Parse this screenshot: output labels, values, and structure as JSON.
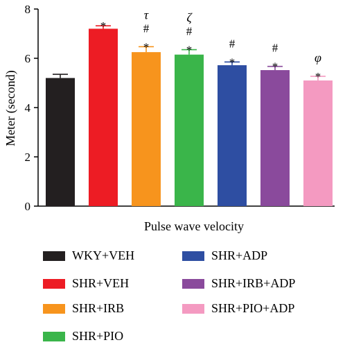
{
  "chart_data": {
    "type": "bar",
    "categories": [
      "WKY+VEH",
      "SHR+VEH",
      "SHR+IRB",
      "SHR+PIO",
      "SHR+ADP",
      "SHR+IRB+ADP",
      "SHR+PIO+ADP"
    ],
    "values": [
      5.2,
      7.2,
      6.25,
      6.15,
      5.72,
      5.52,
      5.1
    ],
    "errors": [
      0.15,
      0.12,
      0.22,
      0.2,
      0.13,
      0.15,
      0.17
    ],
    "colors": [
      "#231f20",
      "#ed1c24",
      "#f7941d",
      "#3ab54a",
      "#2e4ea2",
      "#8a4a9c",
      "#f49ac1"
    ],
    "annotations": [
      [],
      [
        "*"
      ],
      [
        "*",
        "#",
        "τ"
      ],
      [
        "*",
        "#",
        "ζ"
      ],
      [
        "*",
        "#"
      ],
      [
        "*",
        "#"
      ],
      [
        "*",
        "φ"
      ]
    ],
    "title": "",
    "xlabel": "Pulse wave velocity",
    "ylabel": "Meter (second)",
    "ylim": [
      0,
      8
    ],
    "yticks": [
      "0",
      "2",
      "4",
      "6",
      "8"
    ],
    "grid": false,
    "legend_position": "bottom"
  }
}
